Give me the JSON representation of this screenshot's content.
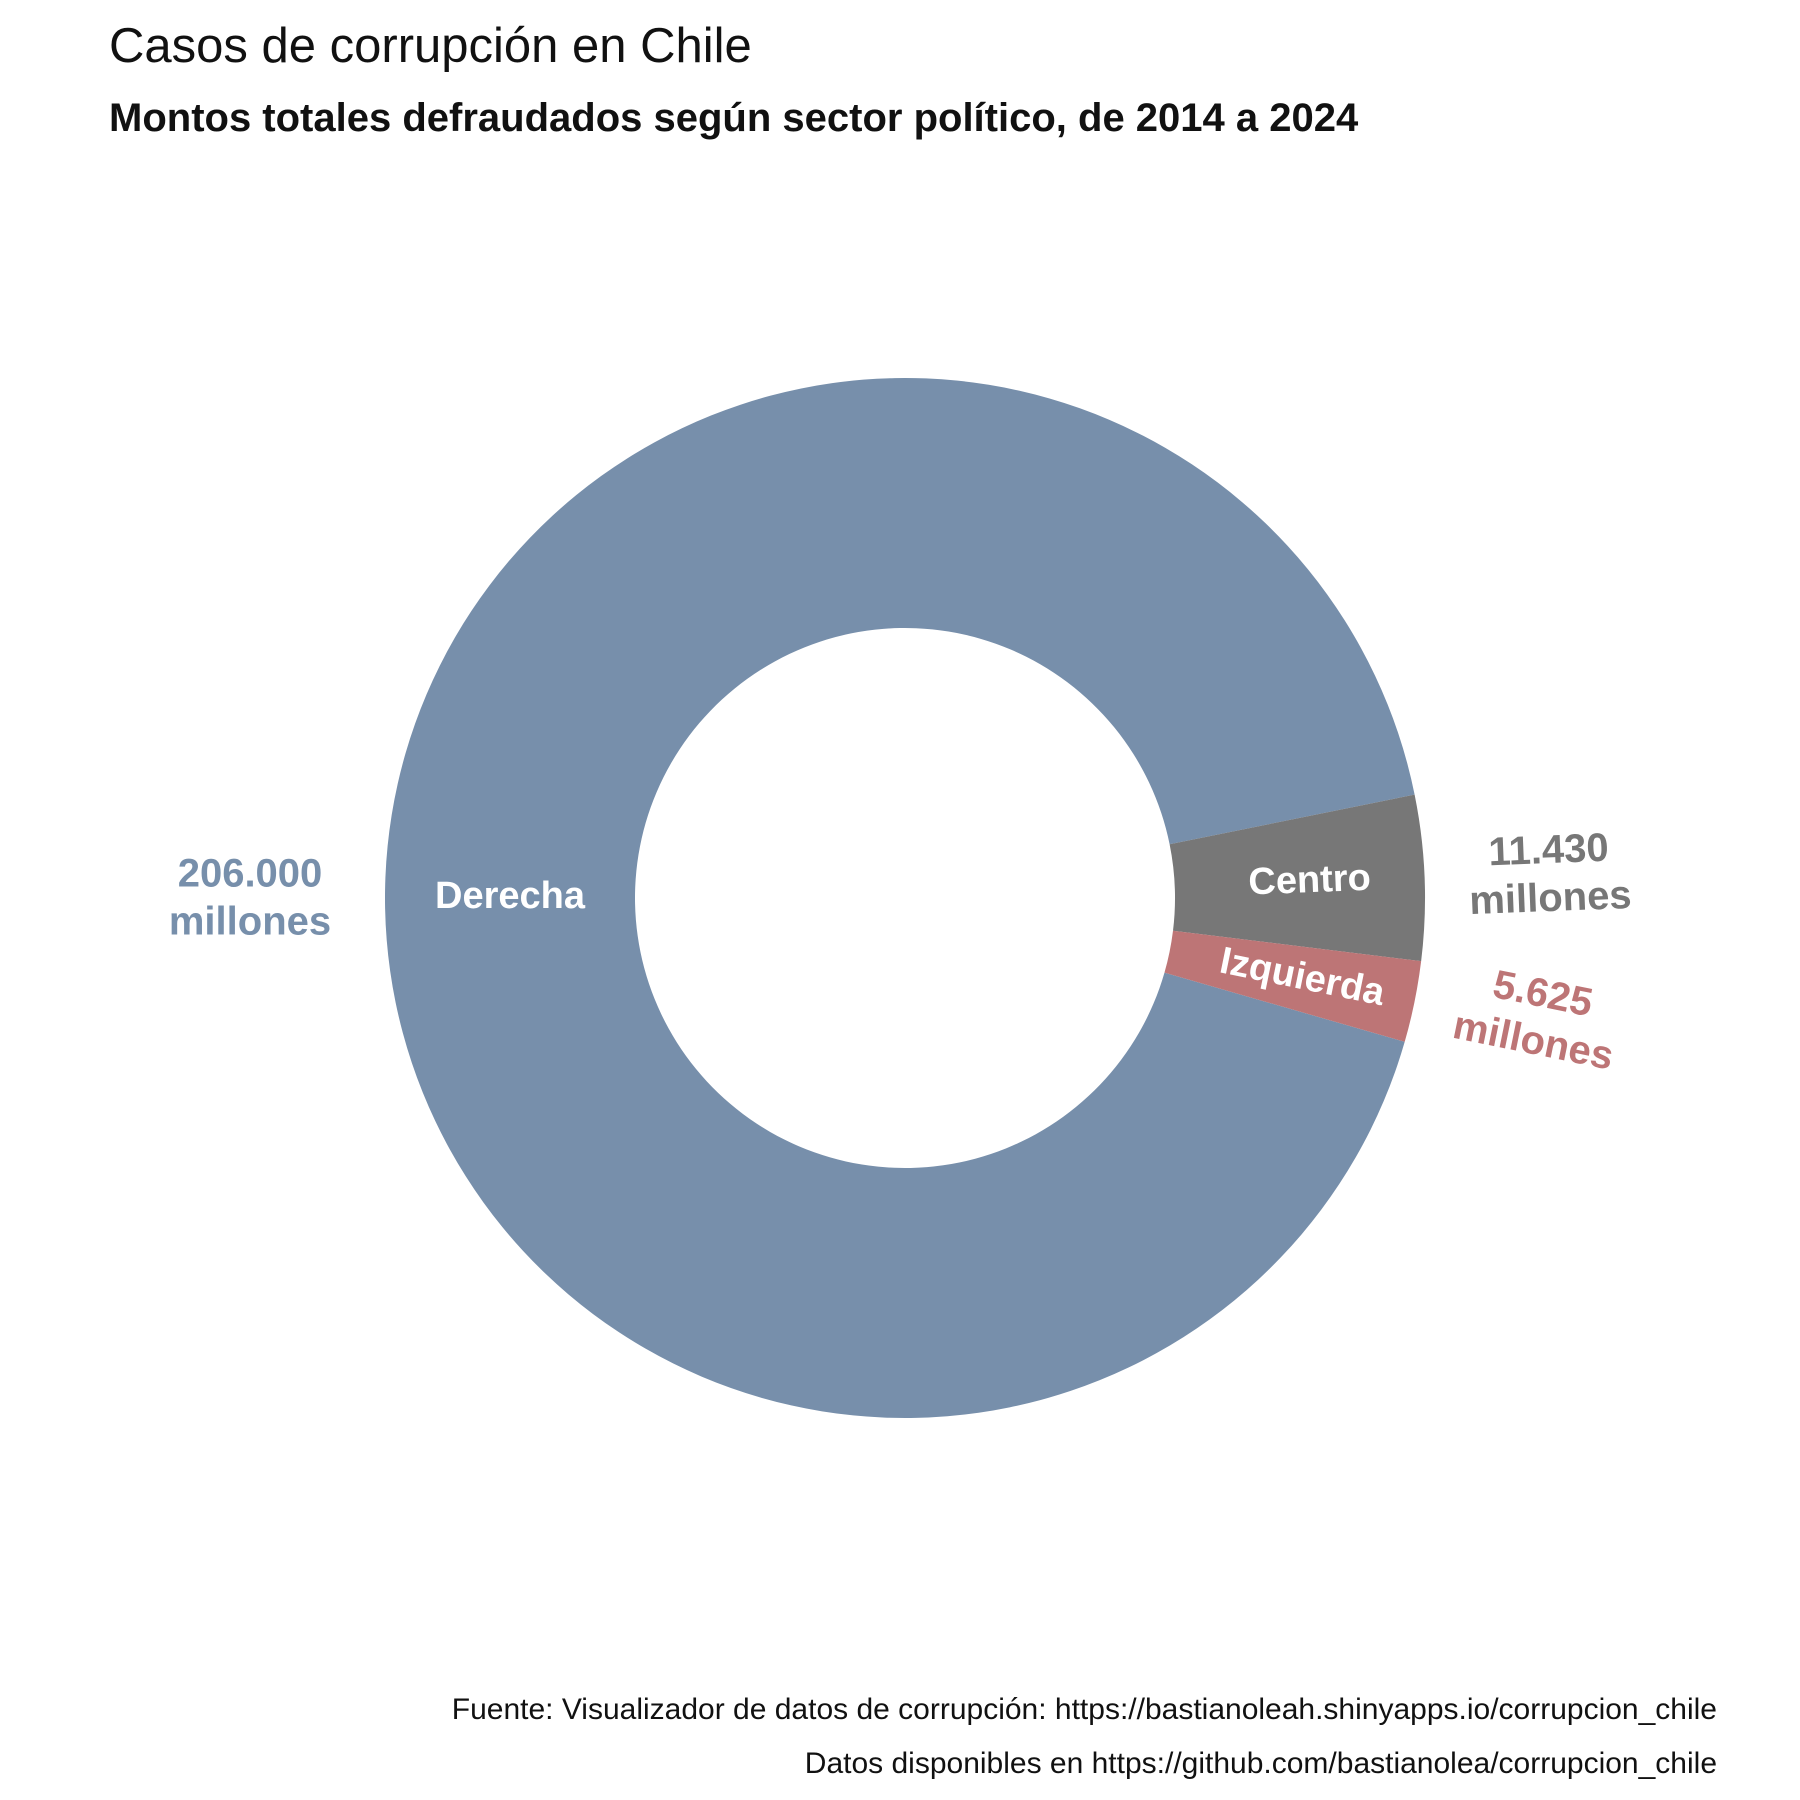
{
  "header": {
    "title": "Casos de corrupción en Chile",
    "subtitle": "Montos totales defraudados según sector político, de 2014 a 2024"
  },
  "caption": {
    "source": "Fuente: Visualizador de datos de corrupción: https://bastianoleah.shinyapps.io/corrupcion_chile",
    "data": "Datos disponibles en https://github.com/bastianolea/corrupcion_chile"
  },
  "chart_data": {
    "type": "pie",
    "variant": "donut",
    "title": "Casos de corrupción en Chile",
    "subtitle": "Montos totales defraudados según sector político, de 2014 a 2024",
    "legend": "none",
    "slices": [
      {
        "name": "Derecha",
        "value": 206000,
        "value_label": [
          "206.000",
          "millones"
        ],
        "color": "#778fab"
      },
      {
        "name": "Centro",
        "value": 11430,
        "value_label": [
          "11.430",
          "millones"
        ],
        "color": "#777777"
      },
      {
        "name": "Izquierda",
        "value": 5625,
        "value_label": [
          "5.625",
          "millones"
        ],
        "color": "#bd7576"
      }
    ]
  }
}
